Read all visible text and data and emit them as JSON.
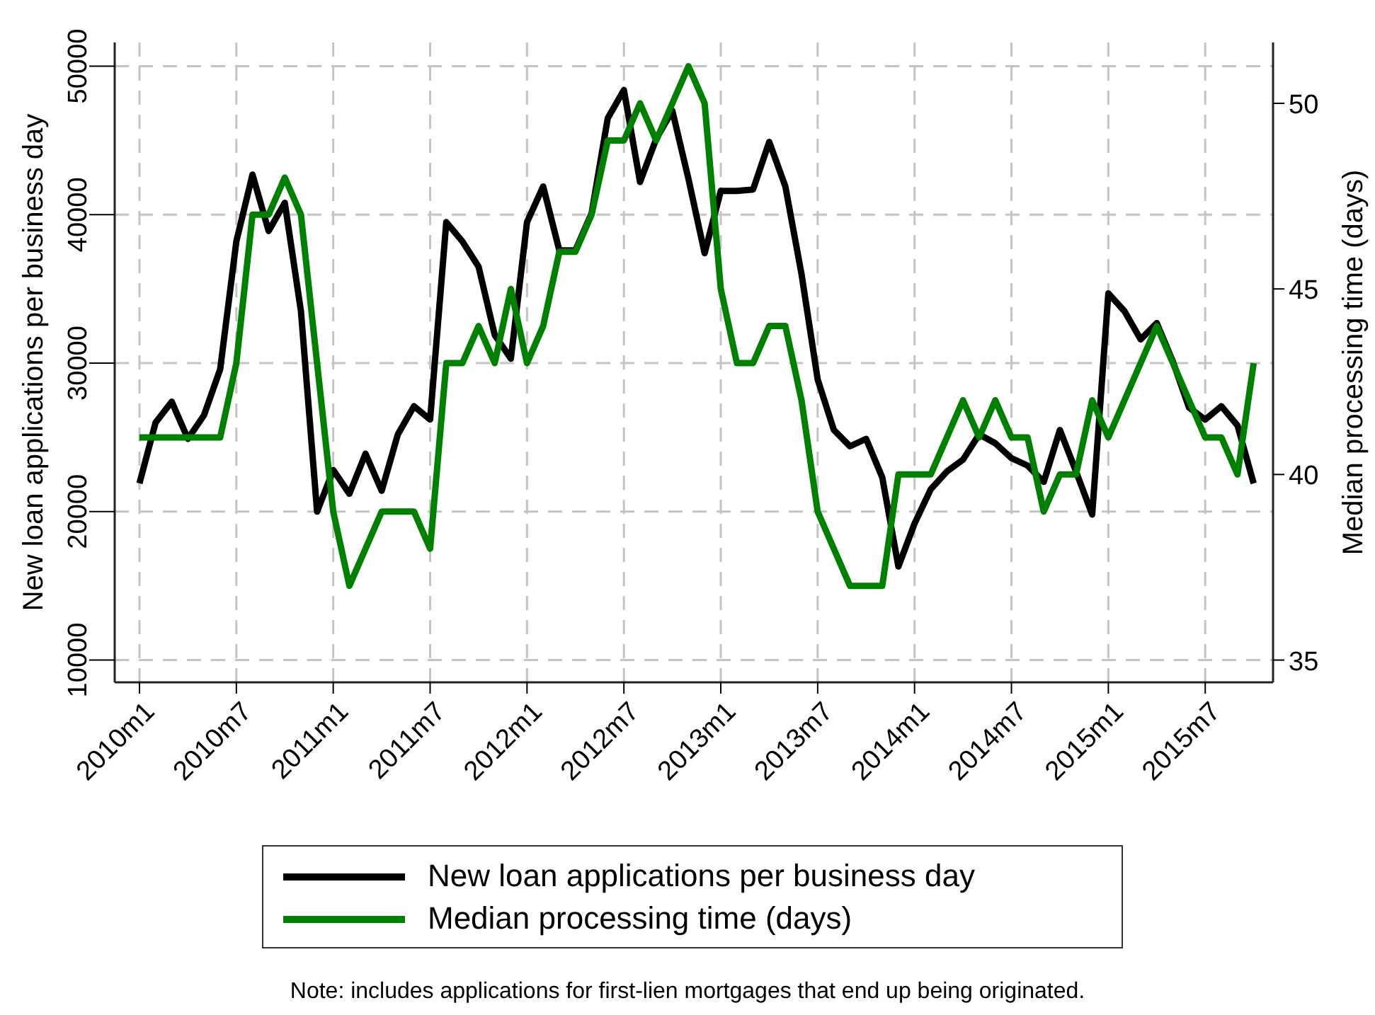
{
  "chart_data": {
    "type": "line",
    "xlabel": null,
    "ylabel": "New loan applications per business day",
    "y2label": "Median processing time (days)",
    "x": [
      "2010-01",
      "2010-02",
      "2010-03",
      "2010-04",
      "2010-05",
      "2010-06",
      "2010-07",
      "2010-08",
      "2010-09",
      "2010-10",
      "2010-11",
      "2010-12",
      "2011-01",
      "2011-02",
      "2011-03",
      "2011-04",
      "2011-05",
      "2011-06",
      "2011-07",
      "2011-08",
      "2011-09",
      "2011-10",
      "2011-11",
      "2011-12",
      "2012-01",
      "2012-02",
      "2012-03",
      "2012-04",
      "2012-05",
      "2012-06",
      "2012-07",
      "2012-08",
      "2012-09",
      "2012-10",
      "2012-11",
      "2012-12",
      "2013-01",
      "2013-02",
      "2013-03",
      "2013-04",
      "2013-05",
      "2013-06",
      "2013-07",
      "2013-08",
      "2013-09",
      "2013-10",
      "2013-11",
      "2013-12",
      "2014-01",
      "2014-02",
      "2014-03",
      "2014-04",
      "2014-05",
      "2014-06",
      "2014-07",
      "2014-08",
      "2014-09",
      "2014-10",
      "2014-11",
      "2014-12",
      "2015-01",
      "2015-02",
      "2015-03",
      "2015-04",
      "2015-05",
      "2015-06",
      "2015-07",
      "2015-08",
      "2015-09",
      "2015-10"
    ],
    "series": [
      {
        "name": "New loan applications per business day",
        "color": "#000000",
        "values": [
          21900,
          26000,
          27400,
          24900,
          26500,
          29600,
          38200,
          42700,
          38900,
          40800,
          33500,
          20000,
          22800,
          21200,
          23900,
          21400,
          25200,
          27100,
          26200,
          39500,
          38200,
          36500,
          31900,
          30300,
          39500,
          41900,
          37600,
          37600,
          40100,
          46500,
          48400,
          42200,
          45100,
          47000,
          42400,
          37400,
          41600,
          41600,
          41700,
          44900,
          41900,
          36000,
          28900,
          25500,
          24400,
          24900,
          22300,
          16300,
          19200,
          21500,
          22700,
          23500,
          25200,
          24600,
          23600,
          23100,
          22000,
          25500,
          22700,
          19800,
          34700,
          33500,
          31600,
          32700,
          30100,
          27000,
          26200,
          27100,
          25800,
          21900
        ]
      },
      {
        "name": "Median processing time (days)",
        "color": "#008000",
        "axis": "y2",
        "values": [
          41,
          41,
          41,
          41,
          41,
          41,
          43,
          47,
          47,
          48,
          47,
          43,
          39,
          37,
          38,
          39,
          39,
          39,
          38,
          43,
          43,
          44,
          43,
          45,
          43,
          44,
          46,
          46,
          47,
          49,
          49,
          50,
          49,
          50,
          51,
          50,
          45,
          43,
          43,
          44,
          44,
          42,
          39,
          38,
          37,
          37,
          37,
          40,
          40,
          40,
          41,
          42,
          41,
          42,
          41,
          41,
          39,
          40,
          40,
          42,
          41,
          42,
          43,
          44,
          43,
          42,
          41,
          41,
          40,
          43
        ]
      }
    ],
    "xlim": [
      "2009-11-15",
      "2015-11-07"
    ],
    "xticks": [
      {
        "value": "2010-01",
        "label": "2010m1"
      },
      {
        "value": "2010-07",
        "label": "2010m7"
      },
      {
        "value": "2011-01",
        "label": "2011m1"
      },
      {
        "value": "2011-07",
        "label": "2011m7"
      },
      {
        "value": "2012-01",
        "label": "2012m1"
      },
      {
        "value": "2012-07",
        "label": "2012m7"
      },
      {
        "value": "2013-01",
        "label": "2013m1"
      },
      {
        "value": "2013-07",
        "label": "2013m7"
      },
      {
        "value": "2014-01",
        "label": "2014m1"
      },
      {
        "value": "2014-07",
        "label": "2014m7"
      },
      {
        "value": "2015-01",
        "label": "2015m1"
      },
      {
        "value": "2015-07",
        "label": "2015m7"
      }
    ],
    "ylim": [
      8500,
      51600
    ],
    "yticks": [
      10000,
      20000,
      30000,
      40000,
      50000
    ],
    "y2lim": [
      34.4,
      51.64
    ],
    "y2ticks": [
      35,
      40,
      45,
      50
    ],
    "grid": true,
    "legend": "bottom",
    "annotations": [
      "Note: includes applications for first-lien mortgages that end up being originated."
    ]
  }
}
